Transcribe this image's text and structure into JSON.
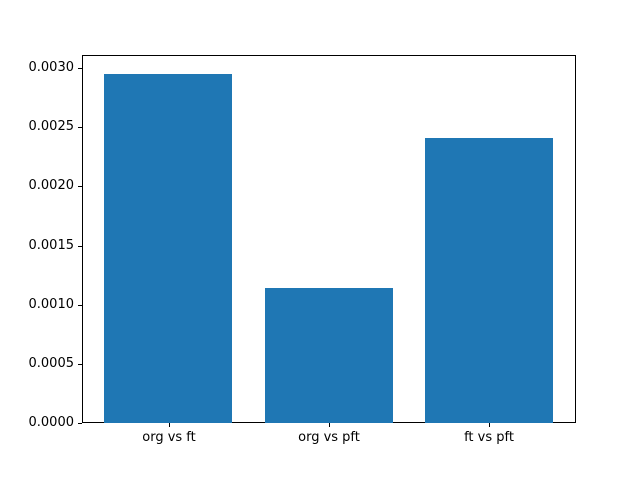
{
  "chart_data": {
    "type": "bar",
    "title": "",
    "xlabel": "",
    "ylabel": "",
    "categories": [
      "org vs ft",
      "org vs pft",
      "ft vs pft"
    ],
    "values": [
      0.00295,
      0.00114,
      0.00241
    ],
    "ylim": [
      0,
      0.00311
    ],
    "xlim": [
      -0.54,
      2.54
    ],
    "bar_width": 0.8,
    "yticks": [
      0.0,
      0.0005,
      0.001,
      0.0015,
      0.002,
      0.0025,
      0.003
    ],
    "ytick_labels": [
      "0.0000",
      "0.0005",
      "0.0010",
      "0.0015",
      "0.0020",
      "0.0025",
      "0.0030"
    ],
    "grid": false,
    "legend": null,
    "bar_color": "#1f77b4",
    "background_color": "#ffffff",
    "spine_color": "#000000"
  }
}
